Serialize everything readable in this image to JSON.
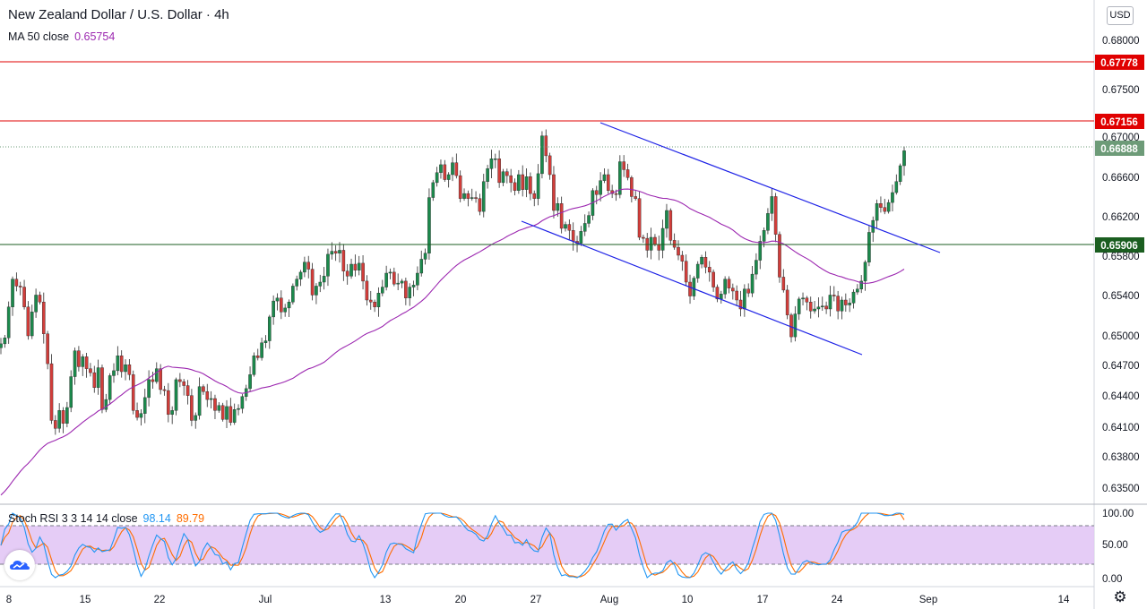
{
  "header": {
    "title": "New Zealand Dollar / U.S. Dollar · 4h",
    "ma_label": "MA 50 close",
    "ma_value": "0.65754",
    "currency_button": "USD"
  },
  "stoch": {
    "label": "Stoch RSI 3 3 14 14 close",
    "k_value": "98.14",
    "d_value": "89.79",
    "levels": [
      "100.00",
      "50.00",
      "0.00"
    ]
  },
  "price_axis": {
    "ticks": [
      "0.68000",
      "0.67500",
      "0.67000",
      "0.66600",
      "0.66200",
      "0.65800",
      "0.65400",
      "0.65000",
      "0.64700",
      "0.64400",
      "0.64100",
      "0.63800",
      "0.63500"
    ]
  },
  "tags": [
    {
      "label": "0.67778",
      "color": "#e00000"
    },
    {
      "label": "0.67156",
      "color": "#e00000"
    },
    {
      "label": "0.66888",
      "color": "#6d9b78"
    },
    {
      "label": "0.65906",
      "color": "#1b5e20"
    }
  ],
  "time_axis": {
    "labels": [
      "8",
      "15",
      "22",
      "Jul",
      "13",
      "20",
      "27",
      "Aug",
      "10",
      "17",
      "24",
      "Sep",
      "14"
    ]
  },
  "chart_data": {
    "type": "candlestick",
    "symbol": "NZDUSD",
    "timeframe": "4h",
    "y_range": [
      0.6335,
      0.682
    ],
    "horizontal_lines": [
      {
        "price": 0.67778,
        "color": "#e00000"
      },
      {
        "price": 0.67156,
        "color": "#e00000"
      },
      {
        "price": 0.65906,
        "color": "#1b5e20"
      },
      {
        "price": 0.66888,
        "color": "#6d9b78",
        "style": "dotted"
      }
    ],
    "channel": {
      "upper": {
        "from": [
          "Jul 30",
          0.6716
        ],
        "to": [
          "Aug 31",
          0.6579
        ]
      },
      "lower": {
        "from": [
          "Jul 24",
          0.6616
        ],
        "to": [
          "Aug 26",
          0.6484
        ]
      }
    },
    "closes": [
      0.6495,
      0.6501,
      0.6532,
      0.656,
      0.6553,
      0.6552,
      0.6532,
      0.6503,
      0.6527,
      0.6544,
      0.6537,
      0.6505,
      0.6475,
      0.6418,
      0.641,
      0.6428,
      0.6415,
      0.6431,
      0.6462,
      0.6488,
      0.6472,
      0.6482,
      0.647,
      0.6466,
      0.6451,
      0.6471,
      0.6429,
      0.6439,
      0.6463,
      0.6468,
      0.6483,
      0.6467,
      0.6474,
      0.6464,
      0.6428,
      0.6421,
      0.6425,
      0.6441,
      0.6459,
      0.6457,
      0.647,
      0.6449,
      0.6448,
      0.6424,
      0.6428,
      0.6459,
      0.6457,
      0.6453,
      0.6443,
      0.6418,
      0.6423,
      0.6452,
      0.6447,
      0.6439,
      0.644,
      0.6428,
      0.6433,
      0.6419,
      0.6432,
      0.6416,
      0.6429,
      0.643,
      0.6442,
      0.645,
      0.6464,
      0.6483,
      0.6481,
      0.6496,
      0.6498,
      0.6522,
      0.6538,
      0.6541,
      0.6527,
      0.6531,
      0.6537,
      0.6553,
      0.656,
      0.6567,
      0.6577,
      0.657,
      0.6544,
      0.6553,
      0.6557,
      0.6563,
      0.6585,
      0.6588,
      0.6586,
      0.6589,
      0.6568,
      0.6563,
      0.6575,
      0.6569,
      0.6576,
      0.6558,
      0.6539,
      0.6537,
      0.6532,
      0.6546,
      0.6552,
      0.6566,
      0.6567,
      0.6555,
      0.6556,
      0.6558,
      0.6541,
      0.6552,
      0.6554,
      0.6566,
      0.658,
      0.6586,
      0.6642,
      0.6657,
      0.6667,
      0.6675,
      0.666,
      0.6665,
      0.6677,
      0.6664,
      0.6641,
      0.6646,
      0.6641,
      0.6642,
      0.6641,
      0.6628,
      0.6658,
      0.6671,
      0.6681,
      0.6681,
      0.6657,
      0.6668,
      0.6664,
      0.6657,
      0.6649,
      0.6665,
      0.665,
      0.6663,
      0.6646,
      0.6641,
      0.6666,
      0.6704,
      0.6684,
      0.6665,
      0.6629,
      0.6636,
      0.6611,
      0.6615,
      0.6609,
      0.6598,
      0.6596,
      0.6608,
      0.6616,
      0.6624,
      0.6649,
      0.6645,
      0.6659,
      0.6665,
      0.6649,
      0.6646,
      0.6645,
      0.6678,
      0.667,
      0.6662,
      0.6643,
      0.6641,
      0.6602,
      0.6601,
      0.6589,
      0.6602,
      0.6595,
      0.6589,
      0.6611,
      0.6629,
      0.6599,
      0.6592,
      0.6584,
      0.6578,
      0.6557,
      0.6543,
      0.6561,
      0.6575,
      0.6582,
      0.6572,
      0.6567,
      0.6552,
      0.654,
      0.6545,
      0.656,
      0.6551,
      0.6548,
      0.6539,
      0.653,
      0.655,
      0.6546,
      0.6565,
      0.6579,
      0.6598,
      0.6609,
      0.6626,
      0.6643,
      0.6605,
      0.6562,
      0.6549,
      0.6524,
      0.6502,
      0.6525,
      0.654,
      0.6541,
      0.6537,
      0.6528,
      0.653,
      0.6532,
      0.6533,
      0.653,
      0.6544,
      0.6543,
      0.6528,
      0.6539,
      0.6534,
      0.6536,
      0.6547,
      0.655,
      0.6558,
      0.6577,
      0.6607,
      0.6619,
      0.6636,
      0.6632,
      0.6628,
      0.6637,
      0.6647,
      0.6658,
      0.6674,
      0.6689
    ],
    "ma50_value": 0.65754,
    "stoch_rsi": {
      "k_last": 98.14,
      "d_last": 89.79,
      "levels": [
        100,
        80,
        20,
        0
      ]
    }
  }
}
